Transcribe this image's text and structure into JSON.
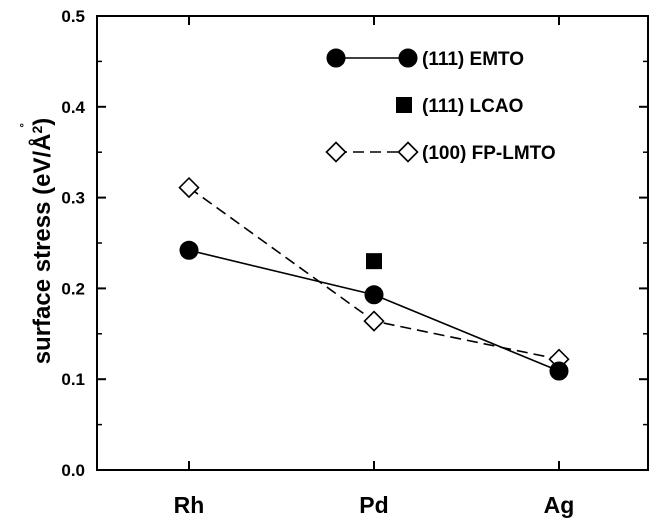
{
  "chart_data": {
    "type": "line",
    "categories": [
      "Rh",
      "Pd",
      "Ag"
    ],
    "ylabel": "surface stress (eV/Å²)",
    "ylabel_main": "surface stress (eV/",
    "ylabel_unit": "Å",
    "ylabel_exp": "2",
    "ylabel_close": ")",
    "ylabel_ring": "˚",
    "ylim": [
      0.0,
      0.5
    ],
    "yticks": [
      "0.0",
      "0.1",
      "0.2",
      "0.3",
      "0.4",
      "0.5"
    ],
    "grid": false,
    "legend_position": "top-right",
    "series": [
      {
        "name": "(111) EMTO",
        "marker": "filled-circle",
        "line": "solid",
        "values": [
          0.242,
          0.193,
          0.109
        ]
      },
      {
        "name": "(111) LCAO",
        "marker": "filled-square",
        "line": "none",
        "values": [
          null,
          0.23,
          null
        ]
      },
      {
        "name": "(100) FP-LMTO",
        "marker": "open-diamond",
        "line": "dashed",
        "values": [
          0.311,
          0.164,
          0.122
        ]
      }
    ]
  }
}
